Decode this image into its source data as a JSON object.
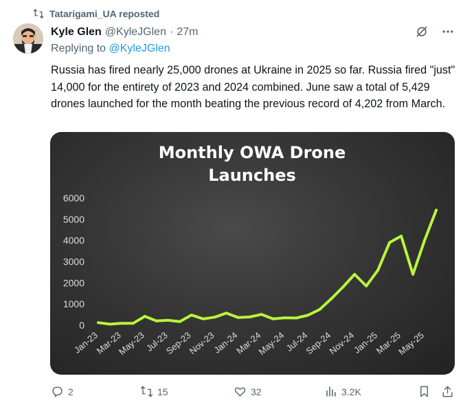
{
  "repost_banner": {
    "text": "Tatarigami_UA reposted",
    "icon": "repost-icon"
  },
  "author": {
    "name": "Kyle Glen",
    "handle": "@KyleJGlen",
    "separator": "·",
    "time": "27m"
  },
  "replying": {
    "prefix": "Replying to ",
    "mention": "@KyleJGlen"
  },
  "tweet_text": "Russia has fired nearly 25,000 drones at Ukraine in 2025 so far. Russia fired \"just\" 14,000 for the entirety of 2023 and 2024 combined. June saw a total of 5,429 drones launched for the month beating the previous record of 4,202 from March.",
  "icons": {
    "grok": "grok-icon",
    "more": "more-icon"
  },
  "actions": {
    "reply_count": "2",
    "repost_count": "15",
    "like_count": "32",
    "views_count": "3.2K"
  },
  "chart_data": {
    "type": "line",
    "title": "Monthly OWA Drone Launches",
    "title_lines": [
      "Monthly OWA Drone",
      "Launches"
    ],
    "ylim": [
      0,
      6000
    ],
    "yticks": [
      0,
      1000,
      2000,
      3000,
      4000,
      5000,
      6000
    ],
    "ytick_labels": [
      "0",
      "1000",
      "2000",
      "3000",
      "4000",
      "5000",
      "6000"
    ],
    "x": [
      "Jan-23",
      "Feb-23",
      "Mar-23",
      "Apr-23",
      "May-23",
      "Jun-23",
      "Jul-23",
      "Aug-23",
      "Sep-23",
      "Oct-23",
      "Nov-23",
      "Dec-23",
      "Jan-24",
      "Feb-24",
      "Mar-24",
      "Apr-24",
      "May-24",
      "Jun-24",
      "Jul-24",
      "Aug-24",
      "Sep-24",
      "Oct-24",
      "Nov-24",
      "Dec-24",
      "Jan-25",
      "Feb-25",
      "Mar-25",
      "Apr-25",
      "May-25",
      "Jun-25"
    ],
    "xtick_labels": [
      "Jan-23",
      "Mar-23",
      "May-23",
      "Jul-23",
      "Sep-23",
      "Nov-23",
      "Jan-24",
      "Mar-24",
      "May-24",
      "Jul-24",
      "Sep-24",
      "Nov-24",
      "Jan-25",
      "Mar-25",
      "May-25"
    ],
    "series": [
      {
        "values": [
          120,
          50,
          90,
          90,
          420,
          200,
          230,
          170,
          480,
          300,
          380,
          570,
          360,
          390,
          510,
          300,
          350,
          340,
          470,
          740,
          1250,
          1800,
          2400,
          1850,
          2600,
          3900,
          4202,
          2400,
          4000,
          5429
        ],
        "color": "#b9f53c"
      }
    ],
    "grid": false
  }
}
